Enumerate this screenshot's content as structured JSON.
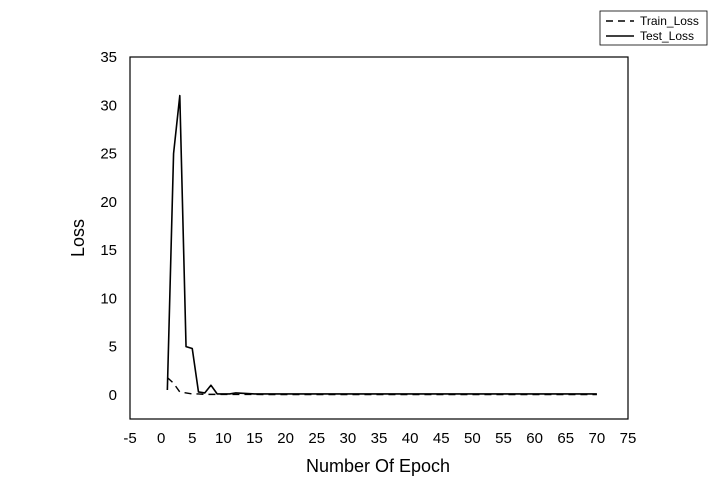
{
  "chart_data": {
    "type": "line",
    "xlabel": "Number Of Epoch",
    "ylabel": "Loss",
    "xlim": [
      -5,
      75
    ],
    "ylim": [
      -2.5,
      35
    ],
    "xticks": [
      -5,
      0,
      5,
      10,
      15,
      20,
      25,
      30,
      35,
      40,
      45,
      50,
      55,
      60,
      65,
      70,
      75
    ],
    "yticks": [
      0,
      5,
      10,
      15,
      20,
      25,
      30,
      35
    ],
    "grid": false,
    "legend_position": "top-right",
    "series": [
      {
        "name": "Train_Loss",
        "style": "dashed",
        "color": "#000000",
        "x": [
          1,
          2,
          3,
          4,
          5,
          6,
          7,
          8,
          9,
          10,
          12,
          15,
          20,
          25,
          30,
          35,
          40,
          45,
          50,
          55,
          60,
          65,
          70
        ],
        "y": [
          1.8,
          1.2,
          0.3,
          0.2,
          0.1,
          0.1,
          0.05,
          0.05,
          0.05,
          0.05,
          0.04,
          0.04,
          0.03,
          0.03,
          0.03,
          0.03,
          0.03,
          0.03,
          0.03,
          0.03,
          0.03,
          0.03,
          0.03
        ]
      },
      {
        "name": "Test_Loss",
        "style": "solid",
        "color": "#000000",
        "x": [
          1,
          2,
          3,
          4,
          5,
          6,
          7,
          8,
          9,
          10,
          11,
          12,
          15,
          20,
          25,
          30,
          35,
          40,
          45,
          50,
          55,
          60,
          65,
          70
        ],
        "y": [
          0.5,
          25,
          31,
          5,
          4.8,
          0.3,
          0.2,
          1.0,
          0.1,
          0.1,
          0.1,
          0.2,
          0.1,
          0.1,
          0.1,
          0.1,
          0.1,
          0.1,
          0.1,
          0.1,
          0.1,
          0.1,
          0.1,
          0.1
        ]
      }
    ]
  }
}
